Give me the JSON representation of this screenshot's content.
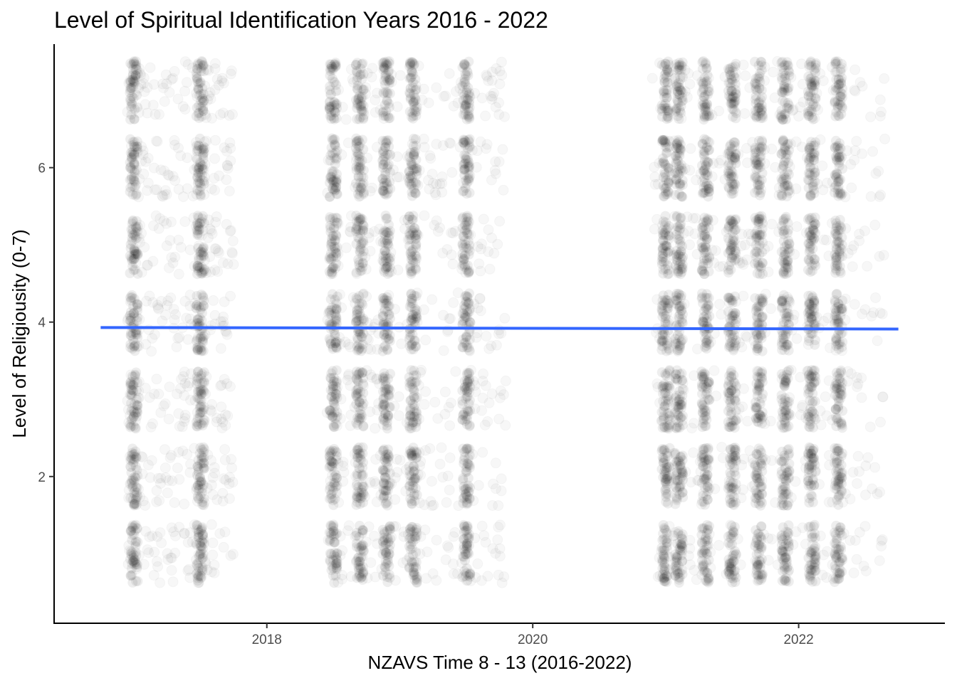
{
  "chart_data": {
    "type": "scatter",
    "title": "Level of Spiritual Identification Years 2016 - 2022",
    "xlabel": "NZAVS Time 8 - 13 (2016-2022)",
    "ylabel": "Level of Religiousity (0-7)",
    "xlim": [
      2016.4,
      2023.1
    ],
    "ylim": [
      0.1,
      7.6
    ],
    "x_ticks": [
      {
        "value": 2018,
        "label": "2018"
      },
      {
        "value": 2020,
        "label": "2020"
      },
      {
        "value": 2022,
        "label": "2022"
      }
    ],
    "y_ticks": [
      {
        "value": 2,
        "label": "2"
      },
      {
        "value": 4,
        "label": "4"
      },
      {
        "value": 6,
        "label": "6"
      }
    ],
    "y_levels": [
      1,
      2,
      3,
      4,
      5,
      6,
      7
    ],
    "point_color": "#000000",
    "point_opacity": 0.03,
    "observation_clusters": [
      {
        "x_start": 2016.95,
        "x_end": 2017.75,
        "dense_x": [
          2017.0,
          2017.5
        ]
      },
      {
        "x_start": 2018.45,
        "x_end": 2019.8,
        "dense_x": [
          2018.5,
          2018.7,
          2018.9,
          2019.1,
          2019.5
        ]
      },
      {
        "x_start": 2020.9,
        "x_end": 2022.65,
        "dense_x": [
          2021.0,
          2021.1,
          2021.3,
          2021.5,
          2021.7,
          2021.9,
          2022.1,
          2022.3
        ]
      }
    ],
    "trend_line": {
      "color": "#3366FF",
      "x": [
        2016.75,
        2022.75
      ],
      "y": [
        3.93,
        3.91
      ]
    },
    "grid": false
  }
}
